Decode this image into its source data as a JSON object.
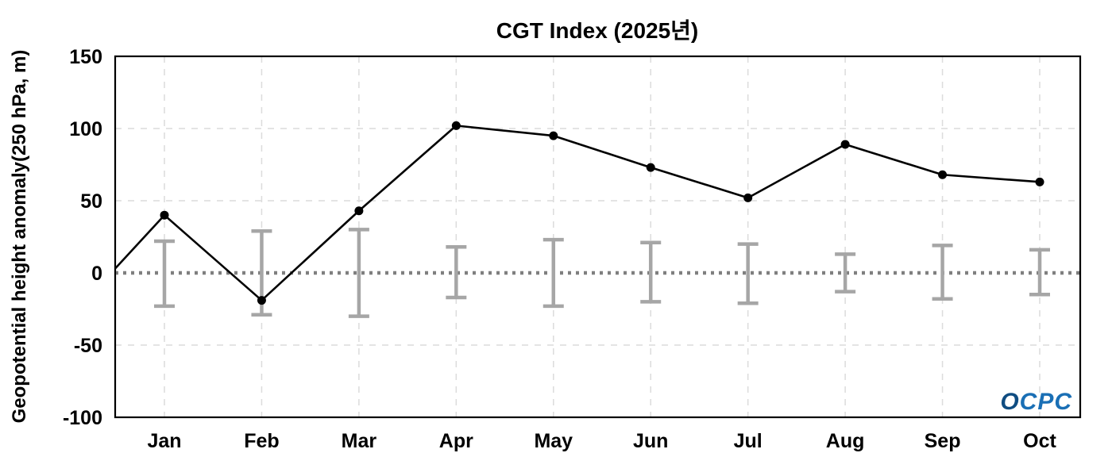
{
  "chart_data": {
    "type": "line",
    "title": "CGT Index (2025년)",
    "ylabel": "Geopotential height anomaly(250 hPa, m)",
    "categories": [
      "Jan",
      "Feb",
      "Mar",
      "Apr",
      "May",
      "Jun",
      "Jul",
      "Aug",
      "Sep",
      "Oct"
    ],
    "series": [
      {
        "name": "CGT Index",
        "values": [
          40,
          -19,
          43,
          102,
          95,
          73,
          52,
          89,
          68,
          63
        ]
      }
    ],
    "leading_edge_value": 3,
    "error_bars": {
      "upper": [
        22,
        29,
        30,
        18,
        23,
        21,
        20,
        13,
        19,
        16
      ],
      "lower": [
        -23,
        -29,
        -30,
        -17,
        -23,
        -20,
        -21,
        -13,
        -18,
        -15
      ],
      "color": "#a6a6a6"
    },
    "ylim": [
      -100,
      150
    ],
    "yticks": [
      150,
      100,
      50,
      0,
      -50,
      -100
    ],
    "zero_line": {
      "value": 0,
      "style": "dotted",
      "color": "#7f7f7f"
    },
    "grid": {
      "show": true,
      "style": "dashed",
      "color": "#dcdcdc"
    },
    "line_color": "#000000",
    "marker": "circle",
    "legend": "none",
    "watermark": {
      "text": "OCPC",
      "color": "#1a6fb5",
      "accent_color": "#0f4c81"
    }
  }
}
